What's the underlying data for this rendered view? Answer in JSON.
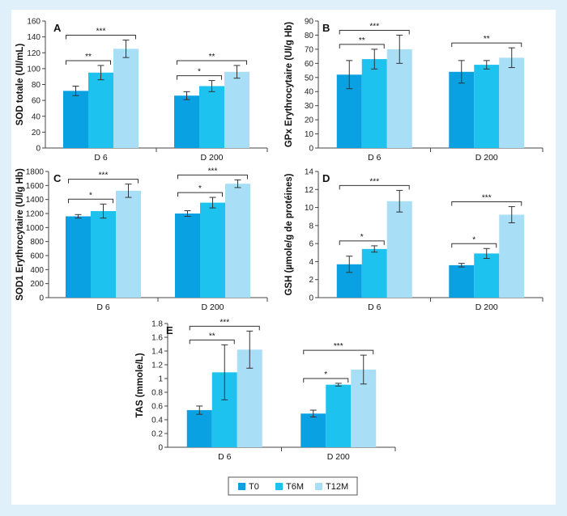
{
  "colors": {
    "T0": "#0aa1e2",
    "T6M": "#1ec2ef",
    "T12M": "#a8def6",
    "frame": "#dff0fb",
    "axis": "#444444"
  },
  "legend": {
    "items": [
      {
        "key": "T0",
        "label": "T0"
      },
      {
        "key": "T6M",
        "label": "T6M"
      },
      {
        "key": "T12M",
        "label": "T12M"
      }
    ]
  },
  "chart_data": [
    {
      "panel": "A",
      "type": "bar",
      "ylabel": "SOD totale (UI/mL)",
      "ylim": [
        0,
        160
      ],
      "yticks": [
        "0",
        "20",
        "40",
        "60",
        "80",
        "100",
        "120",
        "140",
        "160"
      ],
      "categories": [
        "D 6",
        "D 200"
      ],
      "series": [
        {
          "name": "T0",
          "values": [
            72,
            66
          ],
          "errors": [
            6,
            5
          ]
        },
        {
          "name": "T6M",
          "values": [
            95,
            78
          ],
          "errors": [
            9,
            7
          ]
        },
        {
          "name": "T12M",
          "values": [
            125,
            96
          ],
          "errors": [
            11,
            8
          ]
        }
      ],
      "significance": [
        {
          "category": 0,
          "from": 0,
          "to": 1,
          "label": "**"
        },
        {
          "category": 0,
          "from": 0,
          "to": 2,
          "label": "***"
        },
        {
          "category": 1,
          "from": 0,
          "to": 1,
          "label": "*"
        },
        {
          "category": 1,
          "from": 0,
          "to": 2,
          "label": "**"
        }
      ]
    },
    {
      "panel": "B",
      "type": "bar",
      "ylabel": "GPx Erythrocytaire (UI/g Hb)",
      "ylim": [
        0,
        90
      ],
      "yticks": [
        "0",
        "10",
        "20",
        "30",
        "40",
        "50",
        "60",
        "70",
        "80",
        "90"
      ],
      "categories": [
        "D 6",
        "D 200"
      ],
      "series": [
        {
          "name": "T0",
          "values": [
            52,
            54
          ],
          "errors": [
            10,
            8
          ]
        },
        {
          "name": "T6M",
          "values": [
            63,
            59
          ],
          "errors": [
            7,
            3
          ]
        },
        {
          "name": "T12M",
          "values": [
            70,
            64
          ],
          "errors": [
            10,
            7
          ]
        }
      ],
      "significance": [
        {
          "category": 0,
          "from": 0,
          "to": 1,
          "label": "**"
        },
        {
          "category": 0,
          "from": 0,
          "to": 2,
          "label": "***"
        },
        {
          "category": 1,
          "from": 0,
          "to": 2,
          "label": "**"
        }
      ]
    },
    {
      "panel": "C",
      "type": "bar",
      "ylabel": "SOD1 Erythrocytaire (UI/g Hb)",
      "ylim": [
        0,
        1800
      ],
      "yticks": [
        "0",
        "200",
        "400",
        "600",
        "800",
        "1000",
        "1200",
        "1400",
        "1600",
        "1800"
      ],
      "categories": [
        "D 6",
        "D 200"
      ],
      "series": [
        {
          "name": "T0",
          "values": [
            1160,
            1200
          ],
          "errors": [
            25,
            40
          ]
        },
        {
          "name": "T6M",
          "values": [
            1235,
            1355
          ],
          "errors": [
            100,
            75
          ]
        },
        {
          "name": "T12M",
          "values": [
            1525,
            1625
          ],
          "errors": [
            95,
            55
          ]
        }
      ],
      "significance": [
        {
          "category": 0,
          "from": 0,
          "to": 1,
          "label": "*"
        },
        {
          "category": 0,
          "from": 0,
          "to": 2,
          "label": "***"
        },
        {
          "category": 1,
          "from": 0,
          "to": 1,
          "label": "*"
        },
        {
          "category": 1,
          "from": 0,
          "to": 2,
          "label": "***"
        }
      ]
    },
    {
      "panel": "D",
      "type": "bar",
      "ylabel": "GSH (µmole/g de protéines)",
      "ylim": [
        0,
        14
      ],
      "yticks": [
        "0",
        "2",
        "4",
        "6",
        "8",
        "10",
        "12",
        "14"
      ],
      "categories": [
        "D 6",
        "D 200"
      ],
      "series": [
        {
          "name": "T0",
          "values": [
            3.7,
            3.6
          ],
          "errors": [
            0.9,
            0.2
          ]
        },
        {
          "name": "T6M",
          "values": [
            5.4,
            4.9
          ],
          "errors": [
            0.35,
            0.55
          ]
        },
        {
          "name": "T12M",
          "values": [
            10.7,
            9.2
          ],
          "errors": [
            1.2,
            0.9
          ]
        }
      ],
      "significance": [
        {
          "category": 0,
          "from": 0,
          "to": 1,
          "label": "*"
        },
        {
          "category": 0,
          "from": 0,
          "to": 2,
          "label": "***"
        },
        {
          "category": 1,
          "from": 0,
          "to": 1,
          "label": "*"
        },
        {
          "category": 1,
          "from": 0,
          "to": 2,
          "label": "***"
        }
      ]
    },
    {
      "panel": "E",
      "type": "bar",
      "ylabel": "TAS (mmole/L)",
      "ylim": [
        0,
        1.8
      ],
      "yticks": [
        "0",
        "0.2",
        "0.4",
        "0.6",
        "0.8",
        "1",
        "1.2",
        "1.4",
        "1.6",
        "1.8"
      ],
      "categories": [
        "D 6",
        "D 200"
      ],
      "series": [
        {
          "name": "T0",
          "values": [
            0.54,
            0.49
          ],
          "errors": [
            0.06,
            0.05
          ]
        },
        {
          "name": "T6M",
          "values": [
            1.09,
            0.91
          ],
          "errors": [
            0.4,
            0.02
          ]
        },
        {
          "name": "T12M",
          "values": [
            1.42,
            1.13
          ],
          "errors": [
            0.27,
            0.21
          ]
        }
      ],
      "significance": [
        {
          "category": 0,
          "from": 0,
          "to": 1,
          "label": "**"
        },
        {
          "category": 0,
          "from": 0,
          "to": 2,
          "label": "***"
        },
        {
          "category": 1,
          "from": 0,
          "to": 1,
          "label": "*"
        },
        {
          "category": 1,
          "from": 0,
          "to": 2,
          "label": "***"
        }
      ]
    }
  ]
}
